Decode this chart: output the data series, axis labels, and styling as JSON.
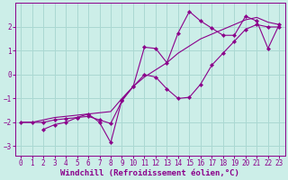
{
  "background_color": "#cceee8",
  "grid_color": "#aad8d2",
  "line_color": "#8b008b",
  "xlabel": "Windchill (Refroidissement éolien,°C)",
  "xlabel_fontsize": 6.5,
  "tick_fontsize": 5.5,
  "xlim": [
    -0.5,
    23.5
  ],
  "ylim": [
    -3.4,
    3.0
  ],
  "yticks": [
    -3,
    -2,
    -1,
    0,
    1,
    2
  ],
  "xticks": [
    0,
    1,
    2,
    3,
    4,
    5,
    6,
    7,
    8,
    9,
    10,
    11,
    12,
    13,
    14,
    15,
    16,
    17,
    18,
    19,
    20,
    21,
    22,
    23
  ],
  "line1_x": [
    0,
    1,
    2,
    3,
    4,
    5,
    6,
    7,
    8,
    9,
    10,
    11,
    12,
    13,
    14,
    15,
    16,
    17,
    18,
    19,
    20,
    21,
    22,
    23
  ],
  "line1_y": [
    -2.0,
    -2.0,
    -1.9,
    -1.8,
    -1.75,
    -1.7,
    -1.65,
    -1.6,
    -1.55,
    -1.0,
    -0.5,
    -0.1,
    0.2,
    0.5,
    0.9,
    1.2,
    1.5,
    1.7,
    1.9,
    2.1,
    2.3,
    2.4,
    2.2,
    2.1
  ],
  "line2_x": [
    0,
    1,
    2,
    3,
    4,
    5,
    6,
    7,
    8,
    9,
    10,
    11,
    12,
    13,
    14,
    15,
    16,
    17,
    18,
    19,
    20,
    21,
    22,
    23
  ],
  "line2_y": [
    -2.0,
    -2.0,
    -2.0,
    -1.9,
    -1.85,
    -1.8,
    -1.75,
    -1.9,
    -2.05,
    -1.1,
    -0.5,
    -0.0,
    -0.1,
    -0.6,
    -1.0,
    -0.95,
    -0.4,
    0.4,
    0.9,
    1.4,
    1.9,
    2.1,
    2.0,
    2.0
  ],
  "line3_x": [
    2,
    3,
    4,
    5,
    6,
    7,
    8,
    9,
    10,
    11,
    12,
    13,
    14,
    15,
    16,
    17,
    18,
    19,
    20,
    21,
    22,
    23
  ],
  "line3_y": [
    -2.3,
    -2.1,
    -2.0,
    -1.8,
    -1.65,
    -2.0,
    -2.85,
    -1.05,
    -0.5,
    1.15,
    1.1,
    0.5,
    1.75,
    2.65,
    2.25,
    1.95,
    1.65,
    1.65,
    2.45,
    2.25,
    1.1,
    2.1
  ]
}
